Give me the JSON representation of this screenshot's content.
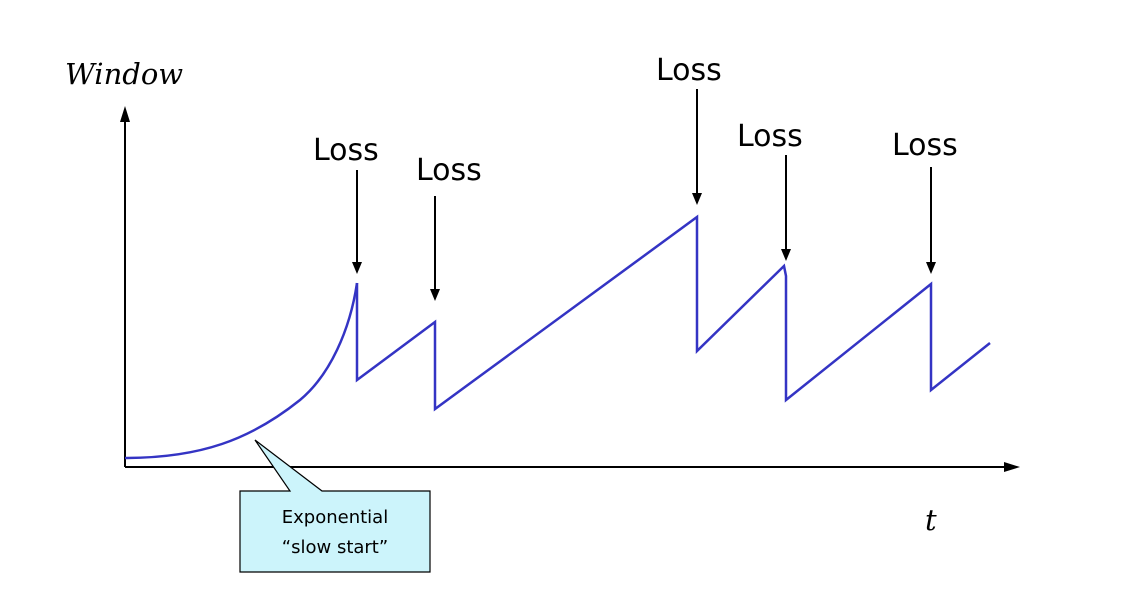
{
  "axes": {
    "y_label": "Window",
    "x_label": "t"
  },
  "loss_events": [
    {
      "label": "Loss"
    },
    {
      "label": "Loss"
    },
    {
      "label": "Loss"
    },
    {
      "label": "Loss"
    },
    {
      "label": "Loss"
    }
  ],
  "callout": {
    "line1": "Exponential",
    "line2": "“slow start”",
    "fill_color": "#ccf4fb"
  },
  "colors": {
    "curve": "#3434c4",
    "axes": "#000000"
  }
}
